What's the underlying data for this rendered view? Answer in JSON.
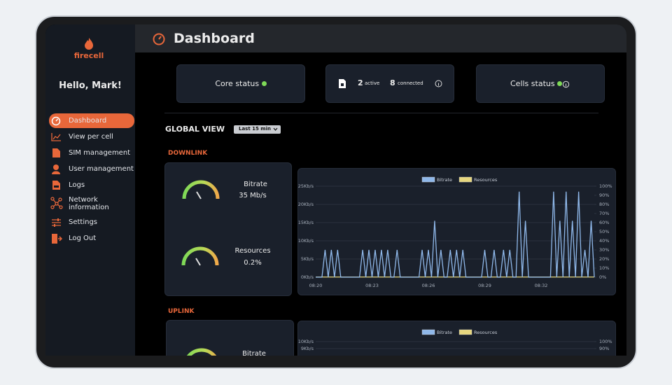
{
  "sidebar": {
    "logo": "firecell",
    "greeting": "Hello, Mark!",
    "menu": [
      "Dashboard",
      "View per cell",
      "SIM management",
      "User management",
      "Logs",
      "Network information",
      "Settings",
      "Log Out"
    ]
  },
  "header": {
    "title": "Dashboard"
  },
  "status_cards": {
    "core_status": "Core status",
    "active_count": 2,
    "active_label": "active",
    "connected_count": 8,
    "connected_label": "connected",
    "cells_status": "Cells status"
  },
  "global_view": {
    "title": "GLOBAL VIEW",
    "period": "Last 15 min"
  },
  "downlink": {
    "title": "DOWNLINK",
    "gauges": [
      {
        "label": "Bitrate",
        "value": "35 Mb/s"
      },
      {
        "label": "Resources",
        "value": "0.2%"
      }
    ],
    "chart_data": {
      "type": "line",
      "categories": [
        "08:20",
        null,
        null,
        null,
        null,
        null,
        null,
        null,
        null,
        null,
        null,
        null,
        null,
        null,
        null,
        null,
        null,
        null,
        "08:23",
        null,
        null,
        null,
        null,
        null,
        null,
        null,
        null,
        null,
        null,
        null,
        null,
        null,
        null,
        null,
        null,
        null,
        "08:26",
        null,
        null,
        null,
        null,
        null,
        null,
        null,
        null,
        null,
        null,
        null,
        null,
        null,
        null,
        null,
        null,
        null,
        "08:29",
        null,
        null,
        null,
        null,
        null,
        null,
        null,
        null,
        null,
        null,
        null,
        null,
        null,
        null,
        null,
        null,
        null,
        "08:32",
        null,
        null,
        null,
        null,
        null,
        null,
        null,
        null,
        null,
        null,
        null,
        null,
        null,
        null,
        null,
        null,
        null
      ],
      "series": [
        {
          "name": "Bitrate",
          "color": "#8fb8ea",
          "values": [
            0,
            0,
            0,
            7.5,
            0,
            7.5,
            0,
            7.5,
            0,
            0,
            0,
            0,
            0,
            0,
            0,
            7.5,
            0,
            7.5,
            0,
            7.5,
            0,
            7.5,
            0,
            7.5,
            0,
            0,
            7.5,
            0,
            0,
            0,
            0,
            0,
            0,
            0,
            7.5,
            0,
            7.5,
            0,
            15.5,
            0,
            7.5,
            0,
            0,
            7.5,
            0,
            7.5,
            0,
            7.5,
            0,
            0,
            0,
            0,
            0,
            0,
            7.5,
            0,
            0,
            7.5,
            0,
            0,
            7.5,
            0,
            7.5,
            0,
            0,
            23.5,
            0,
            15.5,
            0,
            0,
            0,
            0,
            0,
            0,
            0,
            0,
            23.5,
            0,
            15.5,
            0,
            23.5,
            0,
            15.5,
            0,
            23.5,
            0,
            7.5,
            0,
            15.5,
            0
          ]
        },
        {
          "name": "Resources",
          "color": "#e6d67e",
          "axis": "y2",
          "values": [
            0.2,
            0.2,
            0.2,
            0.2,
            0.2,
            0.2,
            0.2,
            0.2,
            0.2,
            0.2,
            0.2,
            0.2,
            0.2,
            0.2,
            0.2,
            0.2,
            0.2,
            0.2,
            0.2,
            0.2,
            0.2,
            0.2,
            0.2,
            0.2,
            0.2,
            0.2,
            0.2,
            0.2,
            0.2,
            0.2,
            0.2,
            0.2,
            0.2,
            0.2,
            0.2,
            0.2,
            0.2,
            0.2,
            0.2,
            0.2,
            0.2,
            0.2,
            0.2,
            0.2,
            0.2,
            0.2,
            0.2,
            0.2,
            0.2,
            0.2,
            0.2,
            0.2,
            0.2,
            0.2,
            0.2,
            0.2,
            0.2,
            0.2,
            0.2,
            0.2,
            0.2,
            0.2,
            0.2,
            0.2,
            0.2,
            0.2,
            0.2,
            0.2,
            0.2,
            0.2,
            0.2,
            0.2,
            0.2,
            0.2,
            0.2,
            0.2,
            0.2,
            0.2,
            0.2,
            0.2,
            0.2,
            0.2,
            0.2,
            0.2,
            0.2,
            0.2,
            0.2,
            0.2,
            0.2,
            0.2
          ]
        }
      ],
      "ylim": [
        0,
        25
      ],
      "yticks": [
        {
          "value": 0,
          "label": "0Kb/s"
        },
        {
          "value": 5,
          "label": "5Kb/s"
        },
        {
          "value": 10,
          "label": "10Kb/s"
        },
        {
          "value": 15,
          "label": "15Kb/s"
        },
        {
          "value": 20,
          "label": "20Kb/s"
        },
        {
          "value": 25,
          "label": "25Kb/s"
        }
      ],
      "y2lim": [
        0,
        100
      ],
      "y2ticks": [
        {
          "value": 0,
          "label": "0%"
        },
        {
          "value": 10,
          "label": "10%"
        },
        {
          "value": 20,
          "label": "20%"
        },
        {
          "value": 30,
          "label": "30%"
        },
        {
          "value": 40,
          "label": "40%"
        },
        {
          "value": 50,
          "label": "50%"
        },
        {
          "value": 60,
          "label": "60%"
        },
        {
          "value": 70,
          "label": "70%"
        },
        {
          "value": 80,
          "label": "80%"
        },
        {
          "value": 90,
          "label": "90%"
        },
        {
          "value": 100,
          "label": "100%"
        }
      ],
      "grid": true
    }
  },
  "uplink": {
    "title": "UPLINK",
    "gauges": [
      {
        "label": "Bitrate"
      }
    ],
    "chart_data": {
      "type": "line",
      "series": [
        {
          "name": "Bitrate",
          "color": "#8fb8ea"
        },
        {
          "name": "Resources",
          "color": "#e6d67e",
          "axis": "y2"
        }
      ],
      "ylim": [
        0,
        10
      ],
      "yticks": [
        {
          "value": 9,
          "label": "9Kb/s"
        },
        {
          "value": 10,
          "label": "10Kb/s"
        }
      ],
      "y2lim": [
        0,
        100
      ],
      "y2ticks": [
        {
          "value": 90,
          "label": "90%"
        },
        {
          "value": 100,
          "label": "100%"
        }
      ],
      "grid": true
    }
  }
}
